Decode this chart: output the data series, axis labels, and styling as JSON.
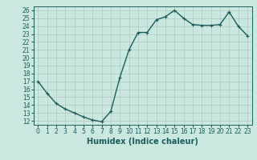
{
  "x": [
    0,
    1,
    2,
    3,
    4,
    5,
    6,
    7,
    8,
    9,
    10,
    11,
    12,
    13,
    14,
    15,
    16,
    17,
    18,
    19,
    20,
    21,
    22,
    23
  ],
  "y": [
    17,
    15.5,
    14.2,
    13.5,
    13.0,
    12.5,
    12.1,
    11.9,
    13.2,
    17.5,
    21.0,
    23.2,
    23.2,
    24.8,
    25.2,
    26.0,
    25.0,
    24.2,
    24.1,
    24.1,
    24.2,
    25.8,
    24.0,
    22.8
  ],
  "xlabel": "Humidex (Indice chaleur)",
  "xlim": [
    -0.5,
    23.5
  ],
  "ylim": [
    11.5,
    26.5
  ],
  "yticks": [
    12,
    13,
    14,
    15,
    16,
    17,
    18,
    19,
    20,
    21,
    22,
    23,
    24,
    25,
    26
  ],
  "xticks": [
    0,
    1,
    2,
    3,
    4,
    5,
    6,
    7,
    8,
    9,
    10,
    11,
    12,
    13,
    14,
    15,
    16,
    17,
    18,
    19,
    20,
    21,
    22,
    23
  ],
  "bg_color": "#c8e8e0",
  "grid_color": "#b0c8c0",
  "line_color": "#1a5c5c",
  "marker": "+",
  "linewidth": 1.0,
  "markersize": 3.5,
  "fontsize_label": 7,
  "fontsize_tick": 5.5
}
